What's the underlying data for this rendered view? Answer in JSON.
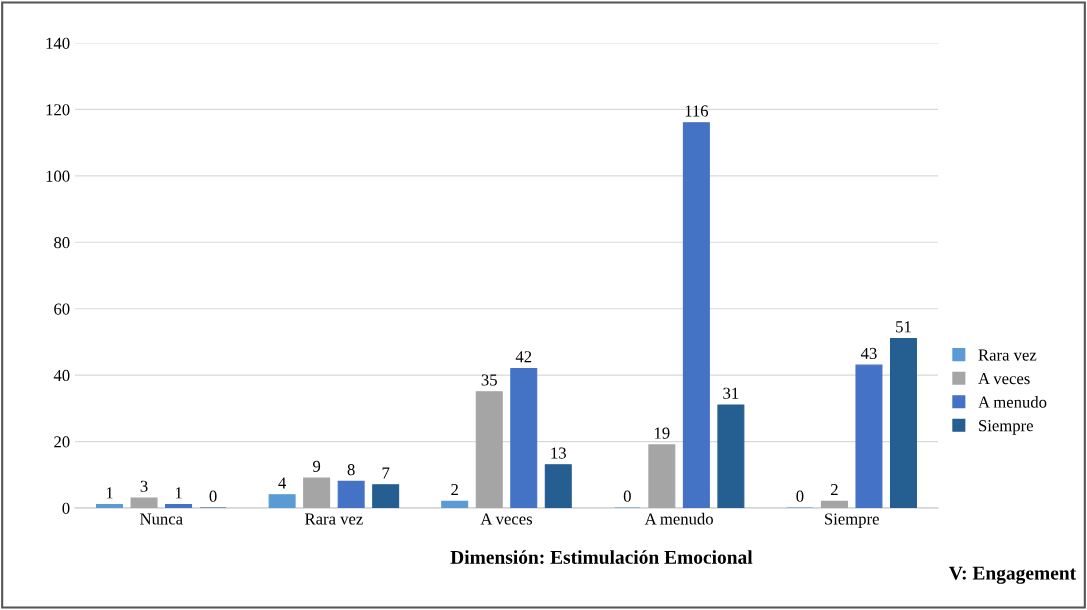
{
  "chart_data": {
    "type": "bar",
    "xlabel": "Dimensión: Estimulación Emocional",
    "categories": [
      "Nunca",
      "Rara vez",
      "A veces",
      "A menudo",
      "Siempre"
    ],
    "series": [
      {
        "name": "Rara vez",
        "color": "#5b9bd5",
        "values": [
          1,
          4,
          2,
          0,
          0
        ]
      },
      {
        "name": "A veces",
        "color": "#a5a5a5",
        "values": [
          3,
          9,
          35,
          19,
          2
        ]
      },
      {
        "name": "A menudo",
        "color": "#4472c4",
        "values": [
          1,
          8,
          42,
          116,
          43
        ]
      },
      {
        "name": "Siempre",
        "color": "#255e91",
        "values": [
          0,
          7,
          13,
          31,
          51
        ]
      }
    ],
    "ylim": [
      0,
      140
    ],
    "yticks": [
      0,
      20,
      40,
      60,
      80,
      100,
      120,
      140
    ],
    "grid": "y",
    "legend": "right",
    "data_labels": true,
    "annotations": [
      "V: Engagement"
    ]
  }
}
